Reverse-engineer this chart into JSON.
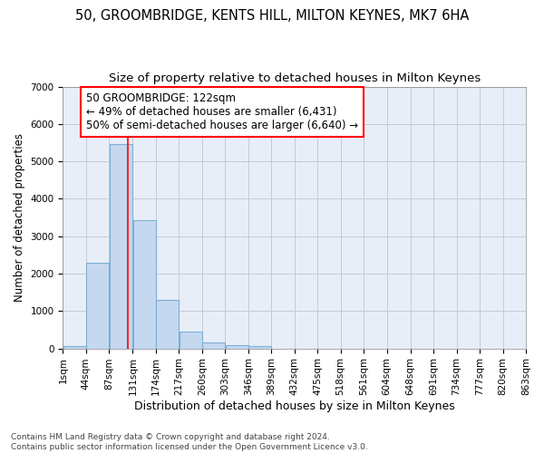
{
  "title1": "50, GROOMBRIDGE, KENTS HILL, MILTON KEYNES, MK7 6HA",
  "title2": "Size of property relative to detached houses in Milton Keynes",
  "xlabel": "Distribution of detached houses by size in Milton Keynes",
  "ylabel": "Number of detached properties",
  "bar_values": [
    75,
    2280,
    5470,
    3440,
    1310,
    460,
    160,
    90,
    55,
    0,
    0,
    0,
    0,
    0,
    0,
    0,
    0,
    0,
    0,
    0
  ],
  "bin_edges": [
    1,
    44,
    87,
    131,
    174,
    217,
    260,
    303,
    346,
    389,
    432,
    475,
    518,
    561,
    604,
    648,
    691,
    734,
    777,
    820,
    863
  ],
  "tick_labels": [
    "1sqm",
    "44sqm",
    "87sqm",
    "131sqm",
    "174sqm",
    "217sqm",
    "260sqm",
    "303sqm",
    "346sqm",
    "389sqm",
    "432sqm",
    "475sqm",
    "518sqm",
    "561sqm",
    "604sqm",
    "648sqm",
    "691sqm",
    "734sqm",
    "777sqm",
    "820sqm",
    "863sqm"
  ],
  "bar_color": "#c5d8f0",
  "bar_edge_color": "#7bafd4",
  "grid_color": "#c8c8d8",
  "bg_color": "#e8eef8",
  "vline_x": 122,
  "annotation_text": "50 GROOMBRIDGE: 122sqm\n← 49% of detached houses are smaller (6,431)\n50% of semi-detached houses are larger (6,640) →",
  "annotation_box_color": "white",
  "annotation_box_edge": "red",
  "ylim": [
    0,
    7000
  ],
  "yticks": [
    0,
    1000,
    2000,
    3000,
    4000,
    5000,
    6000,
    7000
  ],
  "footnote": "Contains HM Land Registry data © Crown copyright and database right 2024.\nContains public sector information licensed under the Open Government Licence v3.0.",
  "title1_fontsize": 10.5,
  "title2_fontsize": 9.5,
  "xlabel_fontsize": 9,
  "ylabel_fontsize": 8.5,
  "tick_fontsize": 7.5,
  "annotation_fontsize": 8.5,
  "footnote_fontsize": 6.5
}
